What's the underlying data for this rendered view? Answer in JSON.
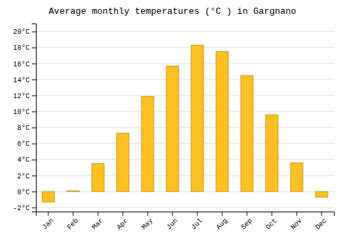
{
  "chart_data": {
    "type": "bar",
    "title": "Average monthly temperatures (°C ) in Gargnano",
    "categories": [
      "Jan",
      "Feb",
      "Mar",
      "Apr",
      "May",
      "Jun",
      "Jul",
      "Aug",
      "Sep",
      "Oct",
      "Nov",
      "Dec"
    ],
    "values": [
      -1.3,
      0.1,
      3.5,
      7.3,
      11.9,
      15.7,
      18.3,
      17.5,
      14.5,
      9.6,
      3.6,
      -0.7
    ],
    "color": "#FFC020",
    "ylim": [
      -2.5,
      21
    ],
    "yticks": [
      {
        "value": -2,
        "label": "-2°C"
      },
      {
        "value": 0,
        "label": "0°C"
      },
      {
        "value": 2,
        "label": "2°C"
      },
      {
        "value": 4,
        "label": "4°C"
      },
      {
        "value": 6,
        "label": "6°C"
      },
      {
        "value": 8,
        "label": "8°C"
      },
      {
        "value": 10,
        "label": "10°C"
      },
      {
        "value": 12,
        "label": "12°C"
      },
      {
        "value": 14,
        "label": "14°C"
      },
      {
        "value": 16,
        "label": "16°C"
      },
      {
        "value": 18,
        "label": "18°C"
      },
      {
        "value": 20,
        "label": "20°C"
      }
    ],
    "grid": true
  }
}
